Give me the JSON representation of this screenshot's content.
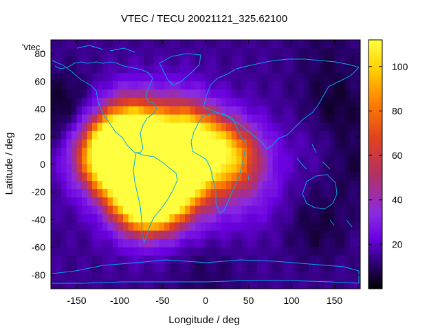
{
  "chart_data": {
    "type": "heatmap",
    "title": "VTEC / TECU 20021121_325.62100",
    "key_label": "'vtec_",
    "xlabel": "Longitude / deg",
    "ylabel": "Latitude / deg",
    "xlim": [
      -180,
      180
    ],
    "ylim": [
      -90,
      90
    ],
    "xticks": [
      -150,
      -100,
      -50,
      0,
      50,
      100,
      150
    ],
    "xtick_labels": [
      "-150",
      "-100",
      "-50",
      "0",
      "50",
      "100",
      "150"
    ],
    "yticks": [
      -80,
      -60,
      -40,
      -20,
      0,
      20,
      40,
      60,
      80
    ],
    "ytick_labels": [
      "-80",
      "-60",
      "-40",
      "-20",
      "0",
      "20",
      "40",
      "60",
      "80"
    ],
    "colorbar": {
      "range": [
        0,
        112
      ],
      "ticks": [
        20,
        40,
        60,
        80,
        100
      ],
      "tick_labels": [
        "20",
        "40",
        "60",
        "80",
        "100"
      ],
      "colormap": [
        "#000000",
        "#2a0070",
        "#6a00e0",
        "#8a2be2",
        "#b0306a",
        "#e04020",
        "#ff8000",
        "#ffd000",
        "#ffff40"
      ]
    },
    "background_vtec": 18,
    "enhancements": [
      {
        "lon": -70,
        "lat": 0,
        "vtec": 98
      },
      {
        "lon": -100,
        "lat": 10,
        "vtec": 78
      },
      {
        "lon": -55,
        "lat": -20,
        "vtec": 85
      },
      {
        "lon": -75,
        "lat": -25,
        "vtec": 70
      },
      {
        "lon": -120,
        "lat": 5,
        "vtec": 52
      },
      {
        "lon": -85,
        "lat": 30,
        "vtec": 45
      },
      {
        "lon": -20,
        "lat": 15,
        "vtec": 58
      },
      {
        "lon": -35,
        "lat": 0,
        "vtec": 55
      },
      {
        "lon": 15,
        "lat": 8,
        "vtec": 46
      },
      {
        "lon": 40,
        "lat": 5,
        "vtec": 35
      },
      {
        "lon": -30,
        "lat": 35,
        "vtec": 20
      },
      {
        "lon": 0,
        "lat": -25,
        "vtec": 18
      },
      {
        "lon": 60,
        "lat": -25,
        "vtec": 10
      },
      {
        "lon": 130,
        "lat": 15,
        "vtec": 6
      }
    ],
    "depletions": [
      {
        "lon": -165,
        "lat": 40,
        "vtec": -14
      },
      {
        "lon": 150,
        "lat": 40,
        "vtec": -12
      },
      {
        "lon": 170,
        "lat": 0,
        "vtec": -9
      },
      {
        "lon": 130,
        "lat": -45,
        "vtec": -10
      },
      {
        "lon": 0,
        "lat": -80,
        "vtec": -6
      },
      {
        "lon": 140,
        "lat": 80,
        "vtec": -6
      }
    ],
    "overlay": "coastlines"
  }
}
